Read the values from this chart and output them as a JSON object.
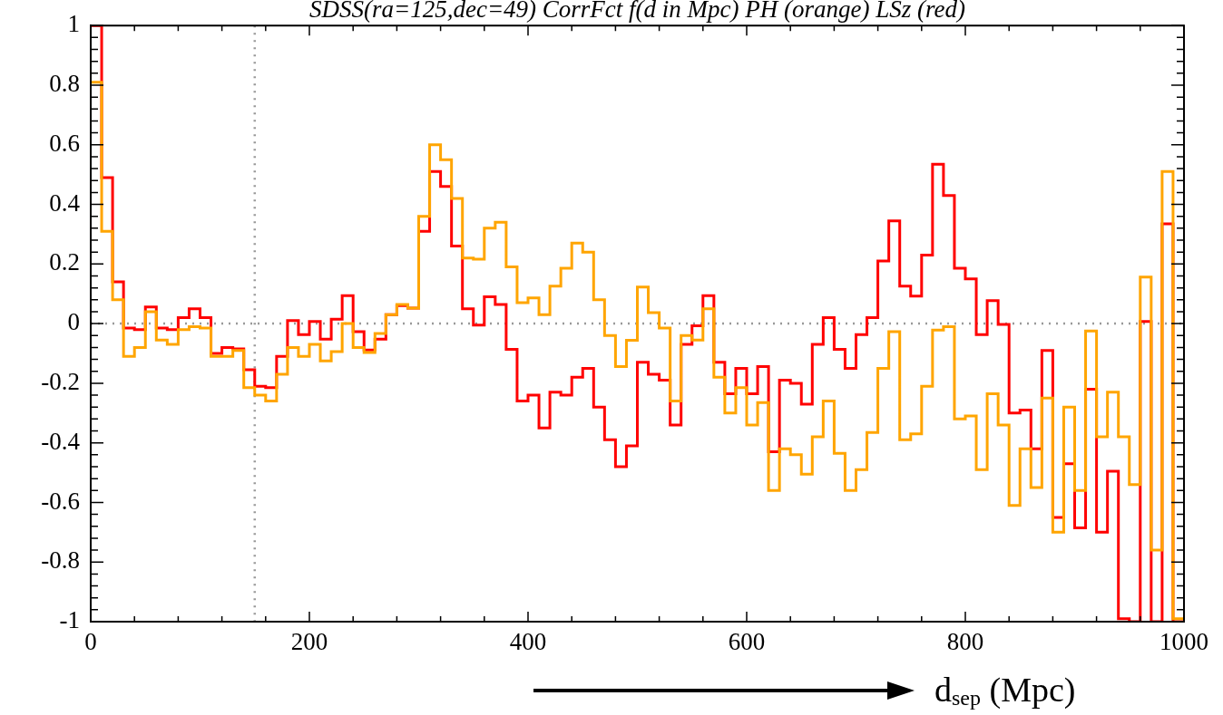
{
  "chart_data": {
    "type": "histogram",
    "title": "SDSS(ra=125,dec=49) CorrFct f(d in Mpc) PH (orange) LSz (red)",
    "xlabel": "d$_{sep}$ (Mpc)",
    "bins": [
      0,
      10,
      20,
      30,
      40,
      50,
      60,
      70,
      80,
      90,
      100,
      110,
      120,
      130,
      140,
      150,
      160,
      170,
      180,
      190,
      200,
      210,
      220,
      230,
      240,
      250,
      260,
      270,
      280,
      290,
      300,
      310,
      320,
      330,
      340,
      350,
      360,
      370,
      380,
      390,
      400,
      410,
      420,
      430,
      440,
      450,
      460,
      470,
      480,
      490,
      500,
      510,
      520,
      530,
      540,
      550,
      560,
      570,
      580,
      590,
      600,
      610,
      620,
      630,
      640,
      650,
      660,
      670,
      680,
      690,
      700,
      710,
      720,
      730,
      740,
      750,
      760,
      770,
      780,
      790,
      800,
      810,
      820,
      830,
      840,
      850,
      860,
      870,
      880,
      890,
      900,
      910,
      920,
      930,
      940,
      950,
      960,
      970,
      980,
      990,
      1000
    ],
    "series": [
      {
        "color": "#ffa500",
        "values": [
          0.81,
          0.31,
          0.08,
          -0.11,
          -0.08,
          0.04,
          -0.055,
          -0.07,
          -0.02,
          -0.01,
          -0.015,
          -0.11,
          -0.11,
          -0.09,
          -0.215,
          -0.24,
          -0.26,
          -0.17,
          -0.08,
          -0.11,
          -0.07,
          -0.125,
          -0.094,
          0.0,
          -0.08,
          -0.097,
          -0.033,
          0.03,
          0.064,
          0.052,
          0.36,
          0.6,
          0.55,
          0.42,
          0.22,
          0.216,
          0.32,
          0.34,
          0.19,
          0.07,
          0.086,
          0.03,
          0.126,
          0.186,
          0.27,
          0.24,
          0.08,
          -0.04,
          -0.144,
          -0.056,
          0.123,
          0.037,
          -0.015,
          -0.26,
          -0.04,
          -0.055,
          0.05,
          -0.18,
          -0.3,
          -0.215,
          -0.34,
          -0.265,
          -0.56,
          -0.42,
          -0.44,
          -0.505,
          -0.38,
          -0.26,
          -0.435,
          -0.56,
          -0.49,
          -0.365,
          -0.15,
          -0.027,
          -0.39,
          -0.37,
          -0.21,
          -0.022,
          -0.01,
          -0.32,
          -0.31,
          -0.49,
          -0.235,
          -0.34,
          -0.61,
          -0.42,
          -0.55,
          -0.25,
          -0.7,
          -0.28,
          -0.56,
          -0.025,
          -0.38,
          -0.23,
          -0.38,
          -0.54,
          0.156,
          -0.76,
          0.51,
          -0.99
        ]
      },
      {
        "color": "#ff0000",
        "values": [
          1.0,
          0.49,
          0.14,
          -0.015,
          -0.02,
          0.056,
          -0.015,
          -0.02,
          0.02,
          0.05,
          0.02,
          -0.1,
          -0.08,
          -0.085,
          -0.155,
          -0.21,
          -0.215,
          -0.11,
          0.01,
          -0.037,
          0.007,
          -0.052,
          0.015,
          0.094,
          -0.027,
          -0.089,
          -0.052,
          0.03,
          0.06,
          0.052,
          0.31,
          0.51,
          0.46,
          0.26,
          0.05,
          -0.005,
          0.09,
          0.064,
          -0.086,
          -0.26,
          -0.24,
          -0.35,
          -0.23,
          -0.24,
          -0.18,
          -0.15,
          -0.28,
          -0.39,
          -0.48,
          -0.41,
          -0.13,
          -0.17,
          -0.19,
          -0.34,
          -0.07,
          -0.007,
          0.094,
          -0.13,
          -0.235,
          -0.15,
          -0.235,
          -0.144,
          -0.43,
          -0.19,
          -0.2,
          -0.27,
          -0.07,
          0.02,
          -0.086,
          -0.15,
          -0.037,
          0.02,
          0.21,
          0.345,
          0.126,
          0.092,
          0.23,
          0.535,
          0.43,
          0.186,
          0.15,
          -0.037,
          0.077,
          -0.003,
          -0.3,
          -0.29,
          -0.42,
          -0.09,
          -0.65,
          -0.47,
          -0.685,
          -0.22,
          -0.7,
          -0.495,
          -0.99,
          -1.0,
          0.007,
          -1.0,
          0.335,
          -1.0
        ]
      }
    ],
    "xlim": [
      0,
      1000
    ],
    "xticks": [
      0,
      {
        "value": 40,
        "label": null
      },
      {
        "value": 80,
        "label": null
      },
      {
        "value": 120,
        "label": null
      },
      {
        "value": 160,
        "label": null
      },
      200,
      {
        "value": 240,
        "label": null
      },
      {
        "value": 280,
        "label": null
      },
      {
        "value": 320,
        "label": null
      },
      {
        "value": 360,
        "label": null
      },
      400,
      {
        "value": 440,
        "label": null
      },
      {
        "value": 480,
        "label": null
      },
      {
        "value": 520,
        "label": null
      },
      {
        "value": 560,
        "label": null
      },
      600,
      {
        "value": 640,
        "label": null
      },
      {
        "value": 680,
        "label": null
      },
      {
        "value": 720,
        "label": null
      },
      {
        "value": 760,
        "label": null
      },
      800,
      {
        "value": 840,
        "label": null
      },
      {
        "value": 880,
        "label": null
      },
      {
        "value": 920,
        "label": null
      },
      {
        "value": 960,
        "label": null
      },
      1000
    ],
    "ylim": [
      -1,
      1
    ],
    "yticks": [
      -1,
      {
        "value": -0.96,
        "label": null
      },
      {
        "value": -0.92,
        "label": null
      },
      {
        "value": -0.88,
        "label": null
      },
      {
        "value": -0.84,
        "label": null
      },
      -0.8,
      {
        "value": -0.76,
        "label": null
      },
      {
        "value": -0.72,
        "label": null
      },
      {
        "value": -0.68,
        "label": null
      },
      {
        "value": -0.64,
        "label": null
      },
      -0.6,
      {
        "value": -0.56,
        "label": null
      },
      {
        "value": -0.52,
        "label": null
      },
      {
        "value": -0.48,
        "label": null
      },
      {
        "value": -0.44,
        "label": null
      },
      -0.4,
      {
        "value": -0.36,
        "label": null
      },
      {
        "value": -0.32,
        "label": null
      },
      {
        "value": -0.28,
        "label": null
      },
      {
        "value": -0.24,
        "label": null
      },
      -0.2,
      {
        "value": -0.16,
        "label": null
      },
      {
        "value": -0.12,
        "label": null
      },
      {
        "value": -0.08,
        "label": null
      },
      {
        "value": -0.04,
        "label": null
      },
      0,
      {
        "value": 0.04,
        "label": null
      },
      {
        "value": 0.08,
        "label": null
      },
      {
        "value": 0.12,
        "label": null
      },
      {
        "value": 0.16,
        "label": null
      },
      0.2,
      {
        "value": 0.24,
        "label": null
      },
      {
        "value": 0.28,
        "label": null
      },
      {
        "value": 0.32,
        "label": null
      },
      {
        "value": 0.36,
        "label": null
      },
      0.4,
      {
        "value": 0.44,
        "label": null
      },
      {
        "value": 0.48,
        "label": null
      },
      {
        "value": 0.52,
        "label": null
      },
      {
        "value": 0.56,
        "label": null
      },
      0.6,
      {
        "value": 0.64,
        "label": null
      },
      {
        "value": 0.68,
        "label": null
      },
      {
        "value": 0.72,
        "label": null
      },
      {
        "value": 0.76,
        "label": null
      },
      0.8,
      {
        "value": 0.84,
        "label": null
      },
      {
        "value": 0.88,
        "label": null
      },
      {
        "value": 0.92,
        "label": null
      },
      {
        "value": 0.96,
        "label": null
      },
      1
    ],
    "ref_lines": [
      {
        "axis": "y",
        "value": 0,
        "color": "#999999",
        "line_style": "dotted"
      },
      {
        "axis": "x",
        "value": 150,
        "color": "#999999",
        "line_style": "dotted"
      }
    ]
  }
}
